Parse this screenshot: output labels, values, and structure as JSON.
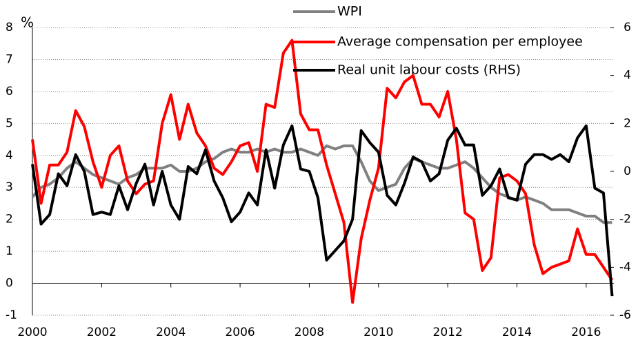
{
  "chart_data": {
    "type": "line",
    "ylabel": "%",
    "x": [
      2000,
      2000.25,
      2000.5,
      2000.75,
      2001,
      2001.25,
      2001.5,
      2001.75,
      2002,
      2002.25,
      2002.5,
      2002.75,
      2003,
      2003.25,
      2003.5,
      2003.75,
      2004,
      2004.25,
      2004.5,
      2004.75,
      2005,
      2005.25,
      2005.5,
      2005.75,
      2006,
      2006.25,
      2006.5,
      2006.75,
      2007,
      2007.25,
      2007.5,
      2007.75,
      2008,
      2008.25,
      2008.5,
      2008.75,
      2009,
      2009.25,
      2009.5,
      2009.75,
      2010,
      2010.25,
      2010.5,
      2010.75,
      2011,
      2011.25,
      2011.5,
      2011.75,
      2012,
      2012.25,
      2012.5,
      2012.75,
      2013,
      2013.25,
      2013.5,
      2013.75,
      2014,
      2014.25,
      2014.5,
      2014.75,
      2015,
      2015.25,
      2015.5,
      2015.75,
      2016,
      2016.25,
      2016.5,
      2016.75
    ],
    "series": [
      {
        "name": "WPI",
        "color": "#808080",
        "axis": "y",
        "values": [
          2.7,
          3.0,
          3.1,
          3.3,
          3.6,
          3.8,
          3.6,
          3.4,
          3.3,
          3.2,
          3.1,
          3.3,
          3.4,
          3.6,
          3.6,
          3.6,
          3.7,
          3.5,
          3.5,
          3.6,
          3.8,
          3.9,
          4.1,
          4.2,
          4.1,
          4.1,
          4.2,
          4.1,
          4.2,
          4.1,
          4.1,
          4.2,
          4.1,
          4.0,
          4.3,
          4.2,
          4.3,
          4.3,
          3.8,
          3.2,
          2.9,
          3.0,
          3.1,
          3.6,
          3.9,
          3.8,
          3.7,
          3.6,
          3.6,
          3.7,
          3.8,
          3.6,
          3.3,
          3.0,
          2.8,
          2.7,
          2.6,
          2.7,
          2.6,
          2.5,
          2.3,
          2.3,
          2.3,
          2.2,
          2.1,
          2.1,
          1.9,
          1.9
        ]
      },
      {
        "name": "Average compensation per employee",
        "color": "#ff0000",
        "axis": "y",
        "values": [
          4.5,
          2.5,
          3.7,
          3.7,
          4.1,
          5.4,
          4.9,
          3.8,
          3.0,
          4.0,
          4.3,
          3.2,
          2.8,
          3.1,
          3.2,
          5.0,
          5.9,
          4.5,
          5.6,
          4.7,
          4.3,
          3.6,
          3.4,
          3.8,
          4.3,
          4.4,
          3.5,
          5.6,
          5.5,
          7.2,
          7.6,
          5.3,
          4.8,
          4.8,
          3.7,
          2.8,
          1.9,
          -0.6,
          1.4,
          2.6,
          3.6,
          6.1,
          5.8,
          6.3,
          6.5,
          5.6,
          5.6,
          5.2,
          6.0,
          4.5,
          2.2,
          2.0,
          0.4,
          0.8,
          3.3,
          3.4,
          3.2,
          2.8,
          1.2,
          0.3,
          0.5,
          0.6,
          0.7,
          1.7,
          0.9,
          0.9,
          0.5,
          0.1
        ]
      },
      {
        "name": "Real unit labour costs (RHS)",
        "color": "#000000",
        "axis": "y2",
        "values": [
          0.3,
          -2.2,
          -1.8,
          -0.1,
          -0.6,
          0.7,
          0.0,
          -1.8,
          -1.7,
          -1.8,
          -0.6,
          -1.6,
          -0.5,
          0.3,
          -1.4,
          0.0,
          -1.4,
          -2.0,
          0.2,
          -0.1,
          0.9,
          -0.4,
          -1.1,
          -2.1,
          -1.7,
          -0.9,
          -1.4,
          0.9,
          -0.7,
          1.1,
          1.9,
          0.1,
          0.0,
          -1.1,
          -3.7,
          -3.3,
          -2.9,
          -2.0,
          1.7,
          1.2,
          0.8,
          -1.0,
          -1.4,
          -0.5,
          0.6,
          0.4,
          -0.4,
          -0.1,
          1.3,
          1.8,
          1.1,
          1.1,
          -1.0,
          -0.6,
          0.1,
          -1.1,
          -1.2,
          0.3,
          0.7,
          0.7,
          0.5,
          0.7,
          0.4,
          1.4,
          1.9,
          -0.7,
          -0.9,
          -5.2
        ]
      }
    ],
    "xlim": [
      2000,
      2016.8
    ],
    "xticks": [
      2000,
      2002,
      2004,
      2006,
      2008,
      2010,
      2012,
      2014,
      2016
    ],
    "ylim": [
      -1,
      8
    ],
    "yticks": [
      -1,
      0,
      1,
      2,
      3,
      4,
      5,
      6,
      7,
      8
    ],
    "y2lim": [
      -6,
      6
    ],
    "y2ticks": [
      -6,
      -4,
      -2,
      0,
      2,
      4,
      6
    ],
    "grid": true
  }
}
